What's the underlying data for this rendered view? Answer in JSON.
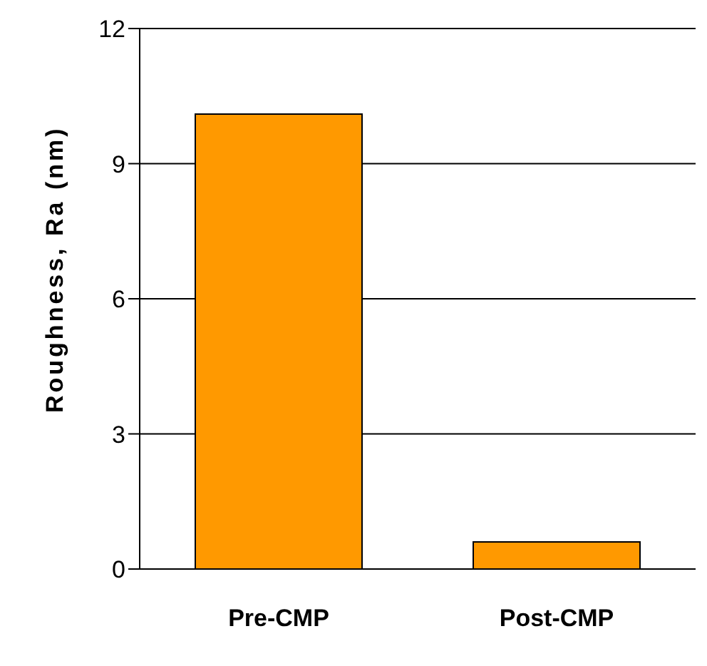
{
  "chart_data": {
    "type": "bar",
    "ylabel": "Roughness, Ra (nm)",
    "categories": [
      "Pre-CMP",
      "Post-CMP"
    ],
    "values": [
      10.1,
      0.6
    ],
    "color": "#ff9900",
    "ylim": [
      0,
      12
    ],
    "yticks": [
      0,
      3,
      6,
      9,
      12
    ],
    "grid": "y"
  }
}
